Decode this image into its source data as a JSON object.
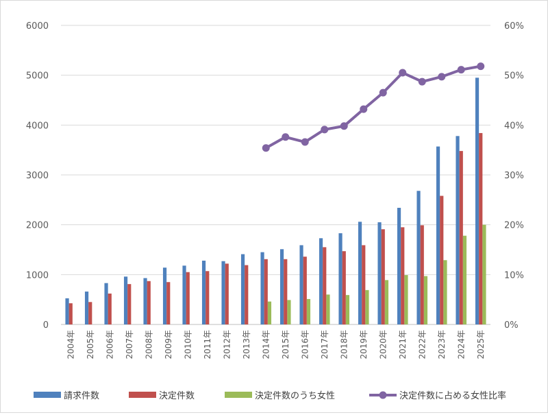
{
  "chart_data": {
    "type": "bar",
    "categories": [
      "2004年",
      "2005年",
      "2006年",
      "2007年",
      "2008年",
      "2009年",
      "2010年",
      "2011年",
      "2012年",
      "2013年",
      "2014年",
      "2015年",
      "2016年",
      "2017年",
      "2018年",
      "2019年",
      "2020年",
      "2021年",
      "2022年",
      "2023年",
      "2024年",
      "2025年"
    ],
    "series": [
      {
        "name": "請求件数",
        "type": "bar",
        "axis": "left",
        "color": "#4f81bd",
        "values": [
          525,
          660,
          830,
          960,
          930,
          1140,
          1180,
          1280,
          1270,
          1410,
          1450,
          1510,
          1590,
          1730,
          1830,
          2060,
          2050,
          2340,
          2680,
          3570,
          3780,
          4950
        ]
      },
      {
        "name": "決定件数",
        "type": "bar",
        "axis": "left",
        "color": "#c0504d",
        "values": [
          425,
          450,
          620,
          810,
          870,
          850,
          1050,
          1070,
          1220,
          1190,
          1310,
          1310,
          1360,
          1550,
          1470,
          1590,
          1910,
          1950,
          1990,
          2580,
          3480,
          3840
        ]
      },
      {
        "name": "決定件数のうち女性",
        "type": "bar",
        "axis": "left",
        "color": "#9bbb59",
        "values": [
          null,
          null,
          null,
          null,
          null,
          null,
          null,
          null,
          null,
          null,
          460,
          490,
          510,
          600,
          590,
          690,
          890,
          990,
          970,
          1290,
          1780,
          2000
        ]
      },
      {
        "name": "決定件数に占める女性比率",
        "type": "line",
        "axis": "right",
        "color": "#8064a2",
        "values": [
          null,
          null,
          null,
          null,
          null,
          null,
          null,
          null,
          null,
          null,
          0.354,
          0.376,
          0.366,
          0.391,
          0.398,
          0.432,
          0.465,
          0.505,
          0.487,
          0.497,
          0.511,
          0.518
        ]
      }
    ],
    "yticks_left": [
      "0",
      "1000",
      "2000",
      "3000",
      "4000",
      "5000",
      "6000"
    ],
    "yticks_right": [
      "0%",
      "10%",
      "20%",
      "30%",
      "40%",
      "50%",
      "60%"
    ],
    "ylim_left": [
      0,
      6000
    ],
    "ylim_right": [
      0,
      0.6
    ],
    "grid": true,
    "legend_position": "bottom"
  }
}
